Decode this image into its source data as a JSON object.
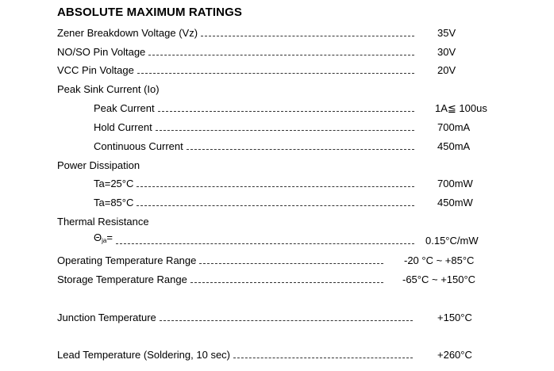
{
  "title": "ABSOLUTE MAXIMUM RATINGS",
  "items": [
    {
      "label": "Zener Breakdown Voltage (Vz)",
      "value": "35V"
    },
    {
      "label": "NO/SO Pin Voltage",
      "value": "30V"
    },
    {
      "label": "VCC Pin Voltage",
      "value": "20V"
    },
    {
      "label": "Peak Sink Current (Io)",
      "items": [
        {
          "label": "Peak Current",
          "value": "1A≦ 100us"
        },
        {
          "label": "Hold Current",
          "value": "700mA"
        },
        {
          "label": "Continuous Current",
          "value": "450mA"
        }
      ]
    },
    {
      "label": "Power Dissipation",
      "items": [
        {
          "label": "Ta=25°C",
          "value": "700mW"
        },
        {
          "label": "Ta=85°C",
          "value": "450mW"
        }
      ]
    },
    {
      "label": "Thermal Resistance",
      "items": [
        {
          "symbol": "Θ",
          "subscript": "ja",
          "suffix": "=",
          "value": "0.15°C/mW"
        }
      ]
    },
    {
      "label": "Operating Temperature Range",
      "value": "-20 °C ~ +85°C"
    },
    {
      "label": "Storage Temperature Range",
      "value": "-65°C ~ +150°C"
    },
    {
      "label": "Junction Temperature",
      "value": "+150°C"
    },
    {
      "label": "Lead Temperature (Soldering, 10 sec)",
      "value": "+260°C"
    }
  ]
}
